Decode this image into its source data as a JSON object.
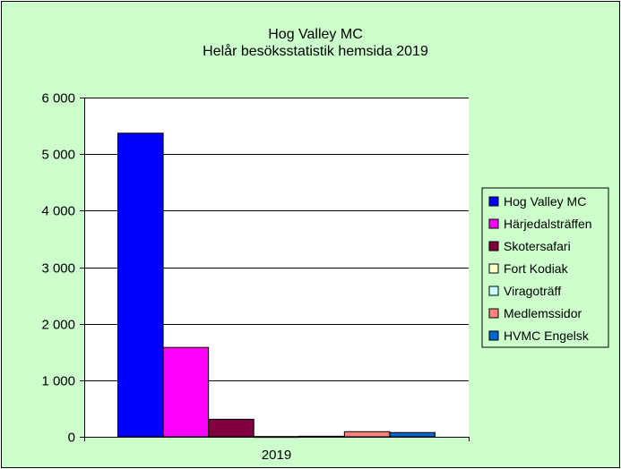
{
  "chart_data": {
    "type": "bar",
    "title": "Hog Valley MC",
    "subtitle": "Helår besöksstatistik hemsida 2019",
    "categories": [
      "2019"
    ],
    "series": [
      {
        "name": "Hog Valley MC",
        "values": [
          5370
        ],
        "color": "#0000ff"
      },
      {
        "name": "Härjedalsträffen",
        "values": [
          1580
        ],
        "color": "#ff00ff"
      },
      {
        "name": "Skotersafari",
        "values": [
          310
        ],
        "color": "#800040"
      },
      {
        "name": "Fort Kodiak",
        "values": [
          5
        ],
        "color": "#ffffcc"
      },
      {
        "name": "Viragoträff",
        "values": [
          10
        ],
        "color": "#ccffff"
      },
      {
        "name": "Medlemssidor",
        "values": [
          90
        ],
        "color": "#ff8080"
      },
      {
        "name": "HVMC Engelsk",
        "values": [
          75
        ],
        "color": "#0066cc"
      }
    ],
    "yticks": [
      "0",
      "1 000",
      "2 000",
      "3 000",
      "4 000",
      "5 000",
      "6 000"
    ],
    "ylim": [
      0,
      6000
    ],
    "xlabel": "",
    "ylabel": "",
    "grid": true,
    "legend": "right",
    "colors": {
      "chart_background": "#ccffcc",
      "plot_background": "#ffffff",
      "gridline": "#000000"
    }
  }
}
